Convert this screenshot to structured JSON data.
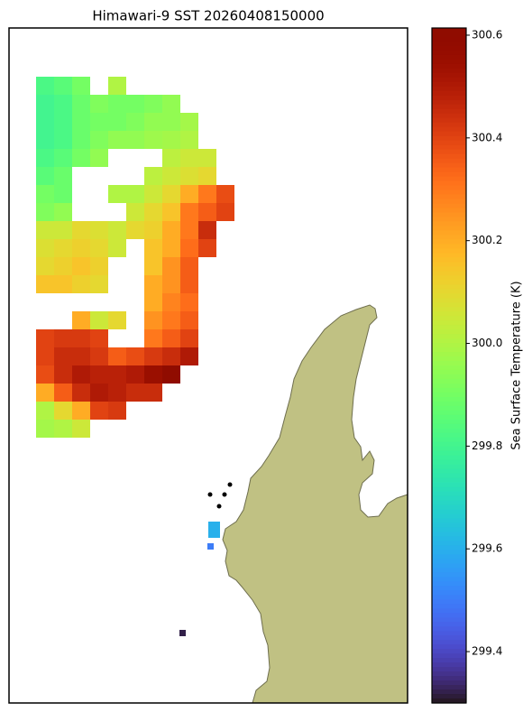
{
  "chart_data": {
    "type": "heatmap",
    "title": "Himawari-9 SST 20260408150000",
    "colorbar_label": "Sea Surface Temperature (K)",
    "colormap": "turbo",
    "land_color": "#c0c183",
    "clim": [
      299.3,
      300.614
    ],
    "cticks": [
      299.4,
      299.6,
      299.8,
      {
        "value": 300.0,
        "label": "300.0"
      },
      300.2,
      300.4,
      300.6
    ],
    "values": [
      [
        299.82,
        299.85,
        299.9,
        null,
        300.0,
        null,
        null,
        null,
        null,
        null,
        null
      ],
      [
        299.8,
        299.82,
        299.88,
        299.92,
        299.9,
        299.9,
        299.92,
        299.95,
        null,
        null,
        null
      ],
      [
        299.8,
        299.82,
        299.88,
        299.9,
        299.9,
        299.92,
        299.95,
        299.95,
        299.98,
        null,
        null
      ],
      [
        299.8,
        299.82,
        299.88,
        299.92,
        299.95,
        299.95,
        299.97,
        299.98,
        300.0,
        null,
        null
      ],
      [
        299.82,
        299.85,
        299.9,
        299.95,
        null,
        null,
        null,
        300.02,
        300.05,
        300.05,
        null
      ],
      [
        299.85,
        299.88,
        null,
        null,
        null,
        null,
        300.02,
        300.05,
        300.08,
        300.1,
        null
      ],
      [
        299.9,
        299.88,
        null,
        null,
        300.0,
        300.0,
        300.05,
        300.1,
        300.2,
        300.3,
        300.38
      ],
      [
        299.92,
        299.95,
        null,
        null,
        null,
        300.05,
        300.1,
        300.15,
        300.3,
        300.35,
        300.4
      ],
      [
        300.05,
        300.05,
        300.1,
        300.08,
        300.05,
        300.1,
        300.12,
        300.2,
        300.3,
        300.45,
        null
      ],
      [
        300.08,
        300.1,
        300.12,
        300.1,
        300.05,
        null,
        300.15,
        300.2,
        300.32,
        300.4,
        null
      ],
      [
        300.1,
        300.12,
        300.15,
        300.12,
        null,
        null,
        300.15,
        300.25,
        300.35,
        null,
        null
      ],
      [
        300.15,
        300.15,
        300.12,
        300.1,
        null,
        null,
        300.2,
        300.25,
        300.35,
        null,
        null
      ],
      [
        null,
        null,
        null,
        null,
        null,
        null,
        300.2,
        300.28,
        300.32,
        null,
        null
      ],
      [
        null,
        null,
        300.2,
        300.05,
        300.1,
        null,
        300.25,
        300.3,
        300.35,
        null,
        null
      ],
      [
        300.4,
        300.42,
        300.42,
        300.4,
        null,
        null,
        300.3,
        300.35,
        300.4,
        null,
        null
      ],
      [
        300.4,
        300.45,
        300.45,
        300.42,
        300.35,
        300.38,
        300.42,
        300.45,
        300.5,
        null,
        null
      ],
      [
        300.38,
        300.45,
        300.5,
        300.48,
        300.48,
        300.5,
        300.55,
        300.6,
        null,
        null,
        null
      ],
      [
        300.2,
        300.35,
        300.45,
        300.5,
        300.48,
        300.45,
        300.45,
        null,
        null,
        null,
        null
      ],
      [
        300.0,
        300.1,
        300.2,
        300.4,
        300.42,
        null,
        null,
        null,
        null,
        null,
        null
      ],
      [
        299.98,
        300.0,
        300.05,
        null,
        null,
        null,
        null,
        null,
        null,
        null,
        null
      ]
    ],
    "isolated_values": [
      299.6,
      299.5,
      299.32
    ]
  }
}
